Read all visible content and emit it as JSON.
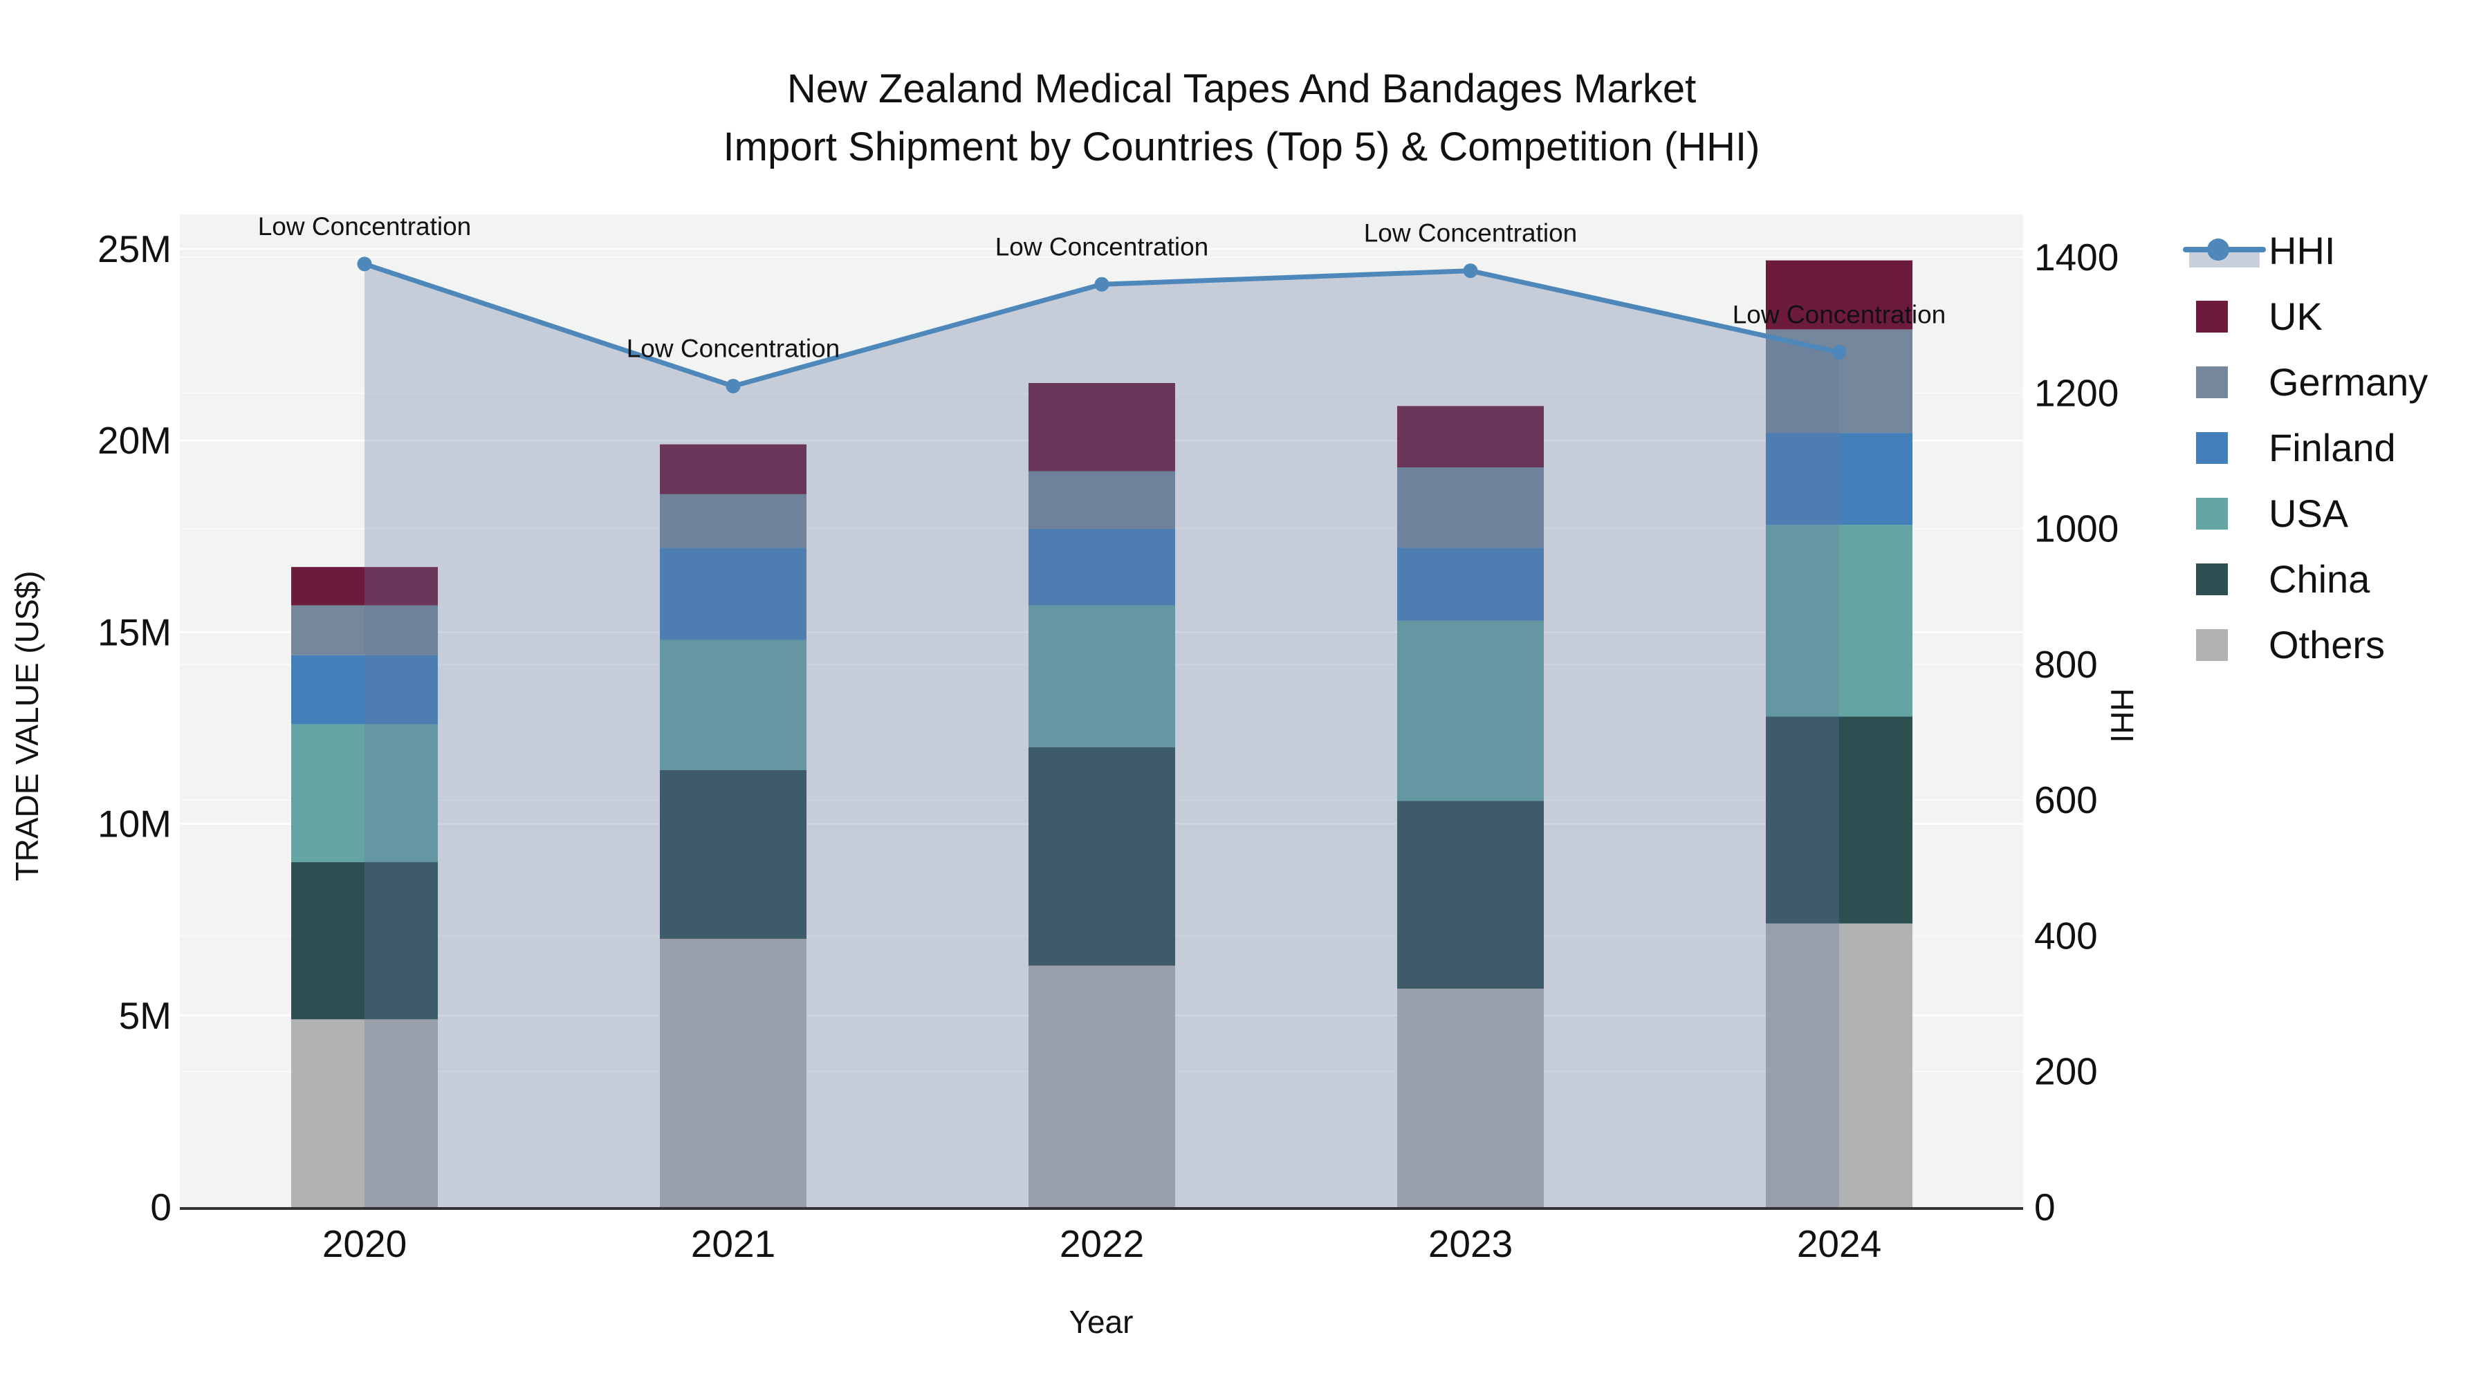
{
  "chart": {
    "title_line1": "New Zealand Medical Tapes And Bandages Market",
    "title_line2": "Import Shipment by Countries (Top 5) & Competition (HHI)",
    "xlabel": "Year",
    "ylabel_left": "TRADE VALUE (US$)",
    "ylabel_right": "HHI"
  },
  "chart_data": {
    "type": "bar",
    "stacked": true,
    "value_unit": "million US$",
    "categories": [
      "2020",
      "2021",
      "2022",
      "2023",
      "2024"
    ],
    "bar_series_bottom_to_top": [
      {
        "name": "Others",
        "color": "#b1b3b2",
        "values": [
          4.9,
          7.0,
          6.3,
          5.7,
          7.4
        ]
      },
      {
        "name": "China",
        "color": "#2d4f51",
        "values": [
          4.1,
          4.4,
          5.7,
          4.9,
          5.4
        ]
      },
      {
        "name": "USA",
        "color": "#64a5a3",
        "values": [
          3.6,
          3.4,
          3.7,
          4.7,
          5.0
        ]
      },
      {
        "name": "Finland",
        "color": "#4380ba",
        "values": [
          1.8,
          2.4,
          2.0,
          1.9,
          2.4
        ]
      },
      {
        "name": "Germany",
        "color": "#75879a",
        "values": [
          1.3,
          1.4,
          1.5,
          2.1,
          2.7
        ]
      },
      {
        "name": "UK",
        "color": "#6d1b3d",
        "values": [
          1.0,
          1.3,
          2.3,
          1.6,
          1.8
        ]
      }
    ],
    "line_series": {
      "name": "HHI",
      "axis": "right",
      "values": [
        1390,
        1210,
        1360,
        1380,
        1260
      ],
      "color": "#4e87ba",
      "fill_color": "rgba(101,121,157,0.31)",
      "point_annotation": "Low Concentration"
    },
    "y_axis_left": {
      "title": "TRADE VALUE (US$)",
      "tick_labels": [
        "0",
        "5M",
        "10M",
        "15M",
        "20M",
        "25M"
      ],
      "tick_values": [
        0,
        5,
        10,
        15,
        20,
        25
      ],
      "range_max": 25.9
    },
    "y_axis_right": {
      "title": "HHI",
      "tick_labels": [
        "0",
        "200",
        "400",
        "600",
        "800",
        "1000",
        "1200",
        "1400"
      ],
      "tick_values": [
        0,
        200,
        400,
        600,
        800,
        1000,
        1200,
        1400
      ],
      "range_max": 1463
    },
    "x_axis": {
      "title": "Year",
      "tick_labels": [
        "2020",
        "2021",
        "2022",
        "2023",
        "2024"
      ]
    },
    "legend": [
      {
        "label": "HHI",
        "type": "line",
        "color": "#4e87ba",
        "fill_color": "#c9cfdb"
      },
      {
        "label": "UK",
        "type": "swatch",
        "color": "#6d1b3d"
      },
      {
        "label": "Germany",
        "type": "swatch",
        "color": "#75879a"
      },
      {
        "label": "Finland",
        "type": "swatch",
        "color": "#4380ba"
      },
      {
        "label": "USA",
        "type": "swatch",
        "color": "#64a5a3"
      },
      {
        "label": "China",
        "type": "swatch",
        "color": "#2d4f51"
      },
      {
        "label": "Others",
        "type": "swatch",
        "color": "#b1b3b2"
      }
    ],
    "grid": {
      "plot_background": "#f2f3f3",
      "gridline_color": "#ffffff",
      "axis_line_color": "#333333"
    }
  }
}
